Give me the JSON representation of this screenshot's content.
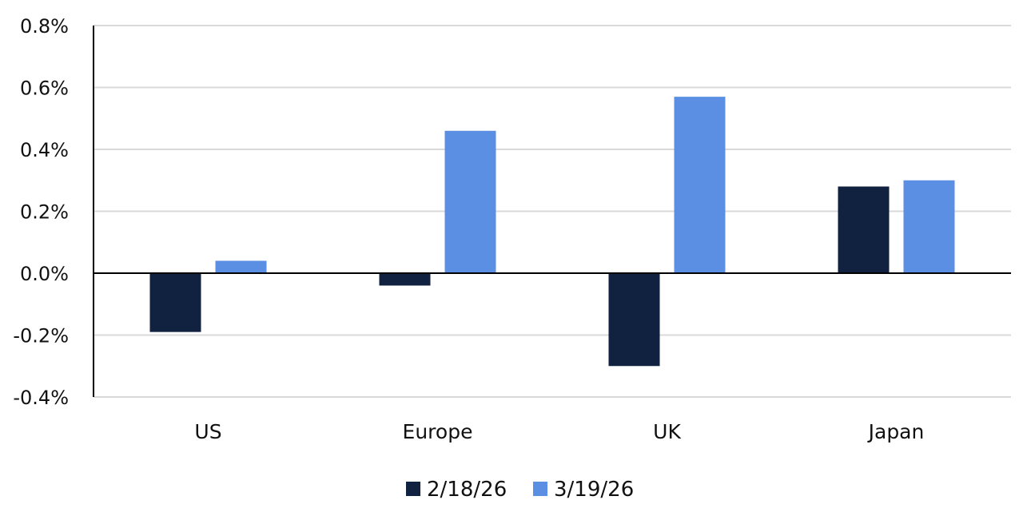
{
  "chart_data": {
    "type": "bar",
    "title": "",
    "xlabel": "",
    "ylabel": "",
    "categories": [
      "US",
      "Europe",
      "UK",
      "Japan"
    ],
    "series": [
      {
        "name": "2/18/26",
        "color": "#10223F",
        "values": [
          -0.19,
          -0.04,
          -0.3,
          0.28
        ]
      },
      {
        "name": "3/19/26",
        "color": "#5B8FE3",
        "values": [
          0.04,
          0.46,
          0.57,
          0.3
        ]
      }
    ],
    "ylim": [
      -0.4,
      0.8
    ],
    "yticks": [
      -0.4,
      -0.2,
      0.0,
      0.2,
      0.4,
      0.6,
      0.8
    ],
    "ytick_labels": [
      "-0.4%",
      "-0.2%",
      "0.0%",
      "0.2%",
      "0.4%",
      "0.6%",
      "0.8%"
    ],
    "grid": true,
    "legend_position": "bottom"
  }
}
